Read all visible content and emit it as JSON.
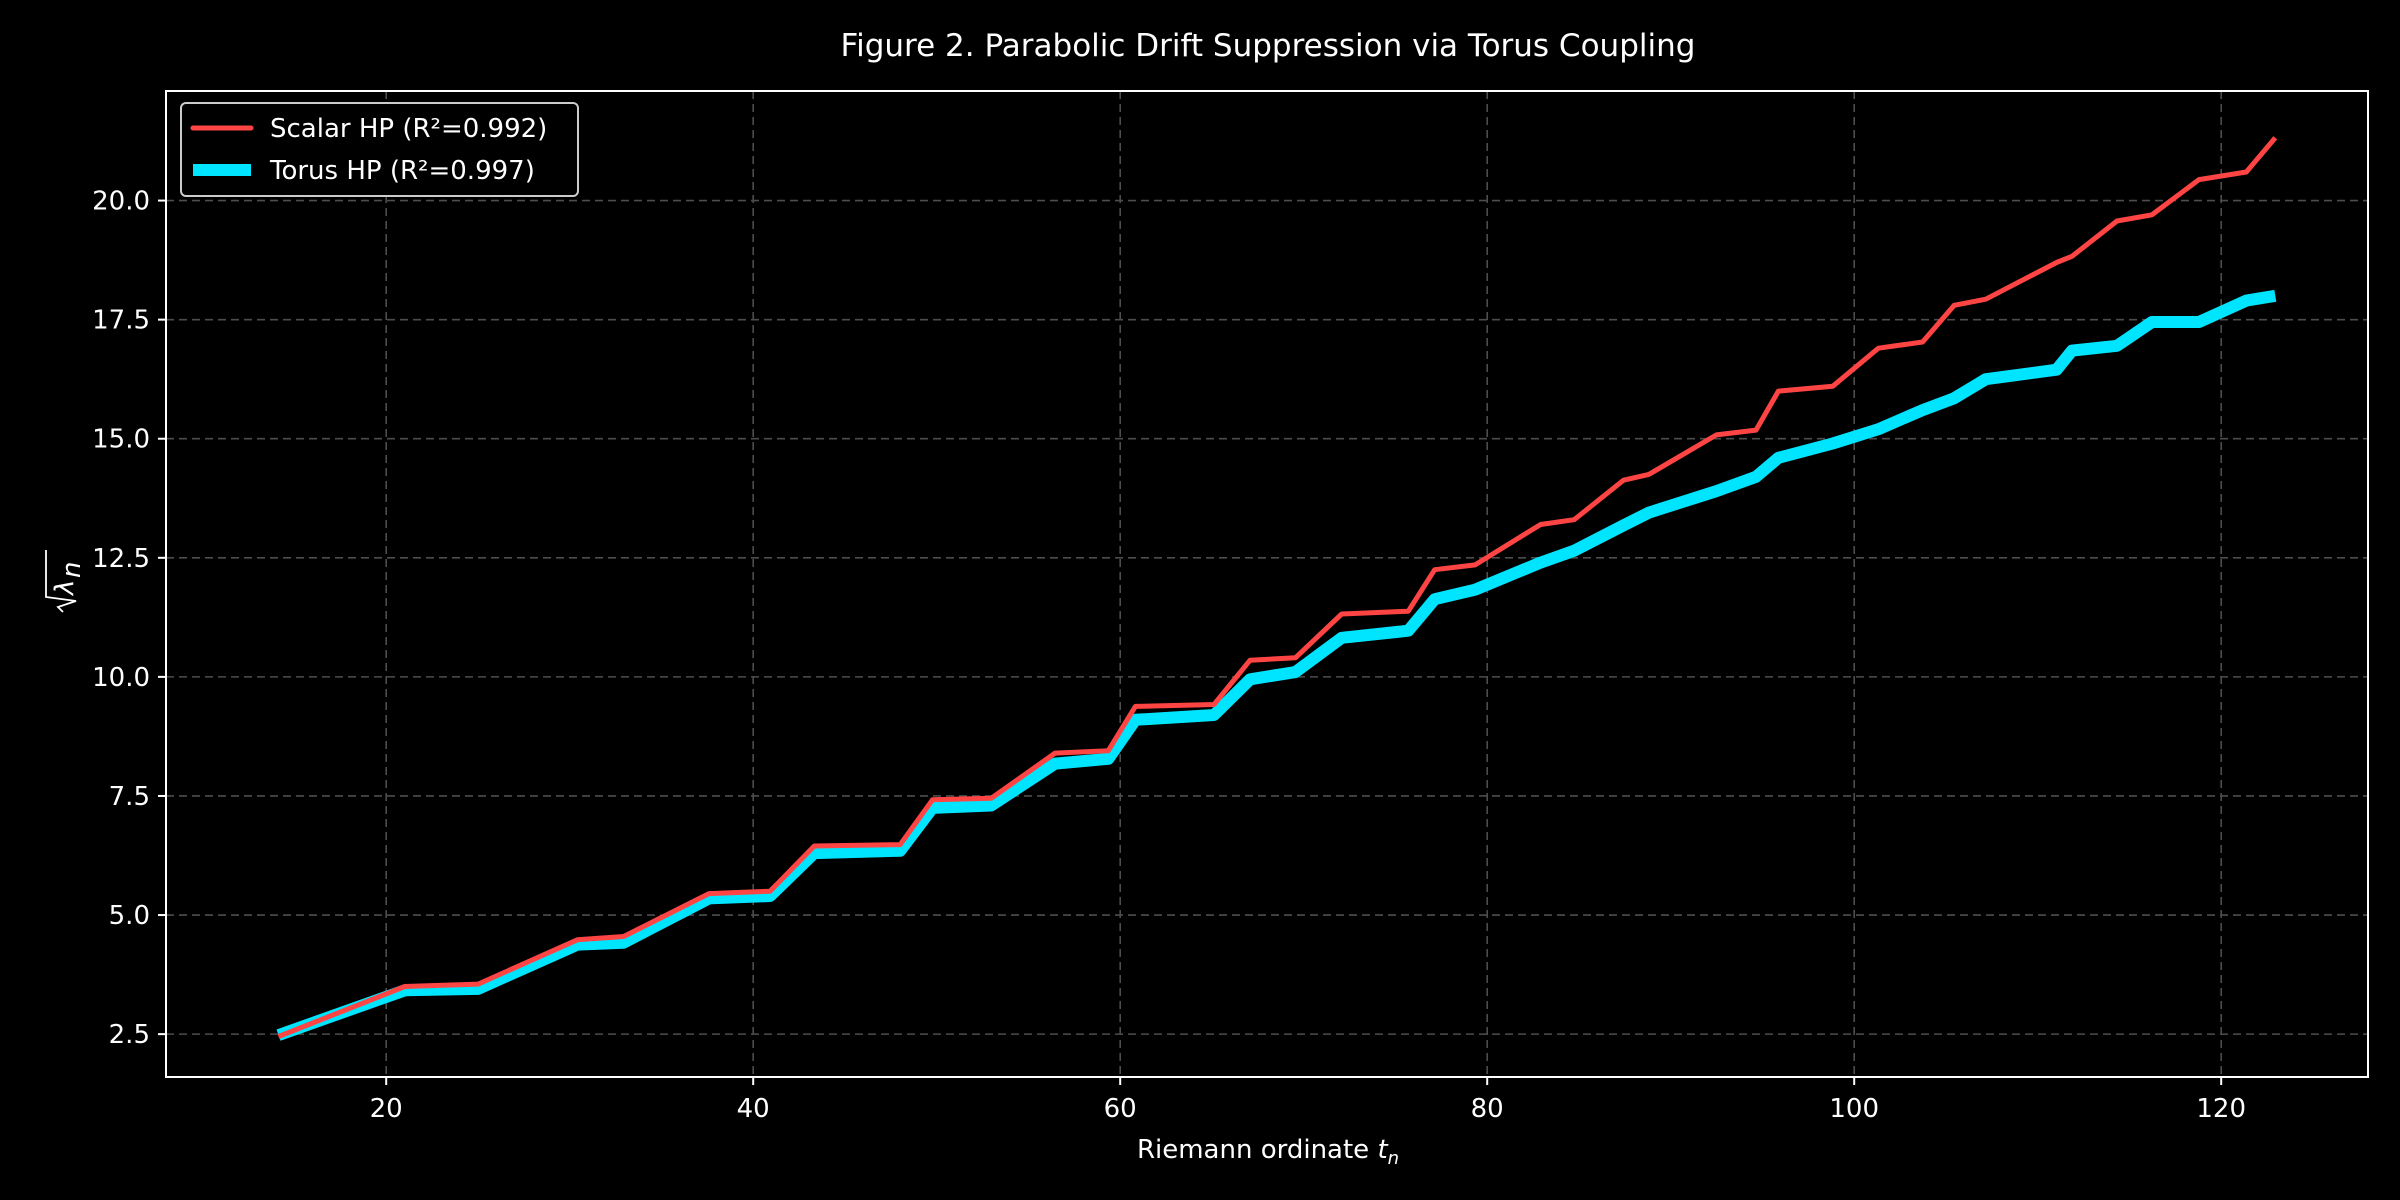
{
  "chart_data": {
    "type": "line",
    "title": "Figure 2. Parabolic Drift Suppression via Torus Coupling",
    "xlabel_main": "Riemann ordinate ",
    "xlabel_sym": "t",
    "xlabel_sub": "n",
    "ylabel_sym": "λ",
    "ylabel_sub": "n",
    "xlim": [
      8,
      128
    ],
    "ylim": [
      1.6,
      22.3
    ],
    "xticks": [
      20,
      40,
      60,
      80,
      100,
      120
    ],
    "xtick_labels": [
      "20",
      "40",
      "60",
      "80",
      "100",
      "120"
    ],
    "yticks": [
      2.5,
      5.0,
      7.5,
      10.0,
      12.5,
      15.0,
      17.5,
      20.0
    ],
    "ytick_labels": [
      "2.5",
      "5.0",
      "7.5",
      "10.0",
      "12.5",
      "15.0",
      "17.5",
      "20.0"
    ],
    "grid": true,
    "legend_position": "upper left",
    "x": [
      14.13,
      21.02,
      25.01,
      30.42,
      32.94,
      37.59,
      40.92,
      43.33,
      48.01,
      49.77,
      52.97,
      56.45,
      59.35,
      60.83,
      65.11,
      67.08,
      69.55,
      72.07,
      75.7,
      77.14,
      79.34,
      82.91,
      84.74,
      87.43,
      88.81,
      92.49,
      94.65,
      95.87,
      98.83,
      101.32,
      103.73,
      105.45,
      107.17,
      111.03,
      111.87,
      114.32,
      116.23,
      118.79,
      121.37,
      122.95
    ],
    "series": [
      {
        "name": "Scalar HP (R²=0.992)",
        "color": "#ff4444",
        "values": [
          2.45,
          3.5,
          3.55,
          4.48,
          4.55,
          5.45,
          5.5,
          6.45,
          6.48,
          7.42,
          7.45,
          8.4,
          8.45,
          9.38,
          9.42,
          10.35,
          10.4,
          11.32,
          11.38,
          12.25,
          12.35,
          13.2,
          13.3,
          14.13,
          14.25,
          15.08,
          15.18,
          16.0,
          16.1,
          16.9,
          17.03,
          17.8,
          17.93,
          18.7,
          18.83,
          19.57,
          19.7,
          20.44,
          20.6,
          21.32
        ]
      },
      {
        "name": "Torus HP (R²=0.997)",
        "color": "#00e5ff",
        "values": [
          2.48,
          3.42,
          3.45,
          4.38,
          4.42,
          5.35,
          5.4,
          6.3,
          6.35,
          7.25,
          7.3,
          8.18,
          8.28,
          9.1,
          9.2,
          9.95,
          10.1,
          10.82,
          10.97,
          11.63,
          11.83,
          12.4,
          12.65,
          13.18,
          13.45,
          13.9,
          14.2,
          14.6,
          14.9,
          15.2,
          15.6,
          15.85,
          16.25,
          16.45,
          16.85,
          16.95,
          17.45,
          17.45,
          17.9,
          18.0
        ]
      }
    ]
  }
}
